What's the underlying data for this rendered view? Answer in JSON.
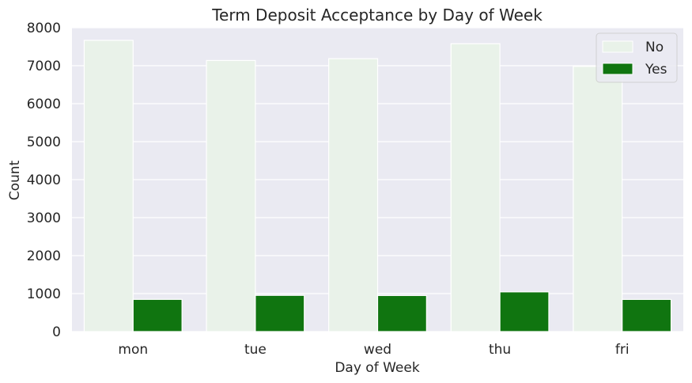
{
  "chart_data": {
    "type": "bar",
    "title": "Term Deposit Acceptance by Day of Week",
    "xlabel": "Day of Week",
    "ylabel": "Count",
    "categories": [
      "mon",
      "tue",
      "wed",
      "thu",
      "fri"
    ],
    "ylim": [
      0,
      8000
    ],
    "yticks": [
      0,
      1000,
      2000,
      3000,
      4000,
      5000,
      6000,
      7000,
      8000
    ],
    "grid": true,
    "legend_position": "top-right",
    "series": [
      {
        "name": "No",
        "color": "#e9f2e9",
        "values": [
          7667,
          7137,
          7185,
          7578,
          6981
        ]
      },
      {
        "name": "Yes",
        "color": "#107510",
        "values": [
          847,
          953,
          949,
          1045,
          846
        ]
      }
    ],
    "background_color": "#eaeaf2",
    "grid_color": "#ffffff"
  }
}
